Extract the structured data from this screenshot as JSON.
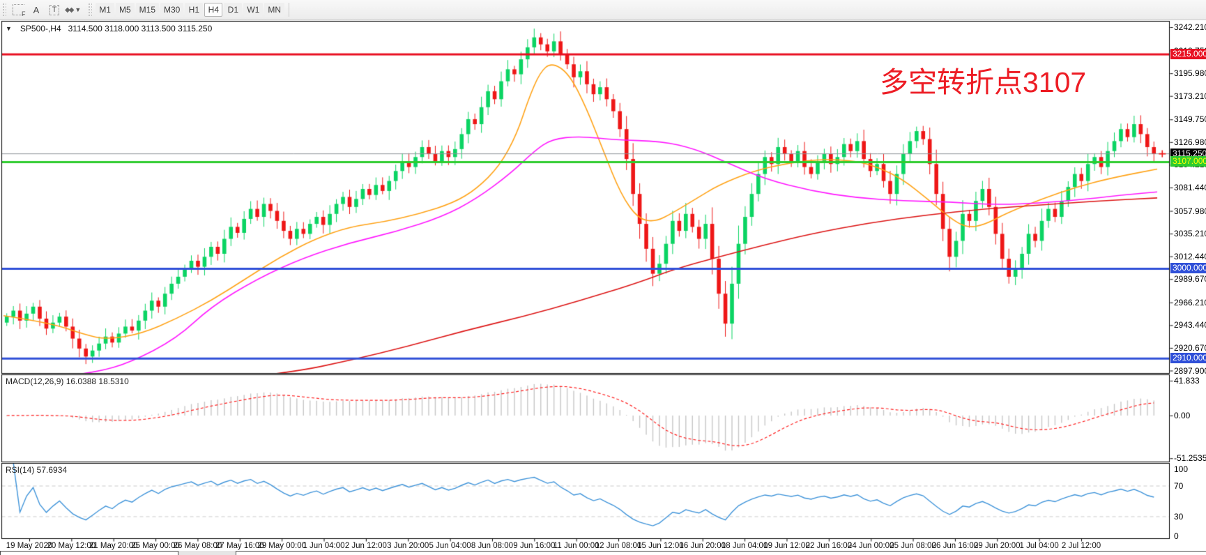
{
  "toolbar": {
    "tools": [
      {
        "name": "fibonacci-tool",
        "label": "F"
      },
      {
        "name": "label-tool",
        "label": "A"
      },
      {
        "name": "text-tool",
        "label": "T"
      },
      {
        "name": "shapes-tool",
        "label": "◆◆",
        "caret": "▼"
      }
    ],
    "timeframes": [
      "M1",
      "M5",
      "M15",
      "M30",
      "H1",
      "H4",
      "D1",
      "W1",
      "MN"
    ],
    "active_timeframe": "H4"
  },
  "chart": {
    "title": {
      "dropdown": "▼",
      "symbol_period": "SP500-,H4",
      "ohlc": "3114.500 3118.000 3113.500 3115.250"
    },
    "annotation": {
      "text": "多空转折点3107",
      "color": "#ed1c24"
    }
  },
  "chart_data": {
    "type": "candlestick+indicators",
    "symbol": "SP500-",
    "period": "H4",
    "quote": {
      "open": "3114.500",
      "high": "3118.000",
      "low": "3113.500",
      "close": "3115.250"
    },
    "price_axis": {
      "min": 2897.9,
      "max": 3242.21,
      "ticks": [
        "3242.210",
        "3218.750",
        "3195.980",
        "3173.210",
        "3149.750",
        "3126.980",
        "3104.210",
        "3081.440",
        "3057.980",
        "3035.210",
        "3012.440",
        "2989.670",
        "2966.210",
        "2943.440",
        "2920.670",
        "2897.900"
      ]
    },
    "levels": [
      {
        "name": "resistance-line",
        "value": 3215.0,
        "label": "3215.000",
        "line_color": "#e81022",
        "line_width": 3,
        "box_bg": "#e81022",
        "box_text": "#ffffff"
      },
      {
        "name": "bid-price-line",
        "value": 3115.25,
        "label": "3115.250",
        "line_color": "#8d9399",
        "line_width": 1,
        "box_bg": "#000000",
        "box_text": "#ffffff"
      },
      {
        "name": "pivot-line-3107",
        "value": 3107.0,
        "label": "3107.000",
        "line_color": "#2ecc2e",
        "line_width": 3,
        "box_bg": "#2ecc2e",
        "box_text": "#ffff00"
      },
      {
        "name": "support-line-3000",
        "value": 3000.0,
        "label": "3000.000",
        "line_color": "#3050d8",
        "line_width": 3,
        "box_bg": "#3050d8",
        "box_text": "#ffffff"
      },
      {
        "name": "support-line-2910",
        "value": 2910.0,
        "label": "2910.000",
        "line_color": "#3050d8",
        "line_width": 3,
        "box_bg": "#3050d8",
        "box_text": "#ffffff"
      }
    ],
    "current_price": 3115.25,
    "candles": {
      "up_color": "#0bd463",
      "down_color": "#ee1717",
      "closes": [
        2952,
        2958,
        2948,
        2955,
        2962,
        2950,
        2940,
        2946,
        2952,
        2942,
        2930,
        2920,
        2912,
        2918,
        2925,
        2932,
        2926,
        2935,
        2942,
        2938,
        2948,
        2958,
        2968,
        2962,
        2975,
        2985,
        2992,
        3000,
        3008,
        3002,
        3012,
        3022,
        3015,
        3030,
        3042,
        3036,
        3050,
        3060,
        3052,
        3065,
        3058,
        3048,
        3038,
        3030,
        3040,
        3035,
        3045,
        3052,
        3044,
        3055,
        3065,
        3072,
        3062,
        3070,
        3080,
        3074,
        3084,
        3078,
        3088,
        3098,
        3108,
        3102,
        3112,
        3122,
        3115,
        3108,
        3118,
        3112,
        3120,
        3135,
        3150,
        3145,
        3162,
        3178,
        3170,
        3188,
        3200,
        3195,
        3210,
        3222,
        3232,
        3225,
        3218,
        3228,
        3215,
        3205,
        3192,
        3198,
        3185,
        3175,
        3182,
        3170,
        3158,
        3140,
        3110,
        3075,
        3045,
        3020,
        2995,
        3005,
        3025,
        3048,
        3038,
        3055,
        3042,
        3030,
        3045,
        3010,
        2975,
        2945,
        2985,
        3025,
        3052,
        3075,
        3095,
        3112,
        3105,
        3122,
        3115,
        3108,
        3118,
        3102,
        3095,
        3108,
        3115,
        3105,
        3112,
        3125,
        3118,
        3128,
        3110,
        3098,
        3105,
        3088,
        3075,
        3095,
        3115,
        3128,
        3138,
        3130,
        3105,
        3075,
        3040,
        3012,
        3028,
        3055,
        3048,
        3068,
        3080,
        3062,
        3035,
        3010,
        2992,
        3000,
        3015,
        3035,
        3028,
        3048,
        3060,
        3052,
        3068,
        3082,
        3095,
        3088,
        3105,
        3112,
        3102,
        3118,
        3128,
        3140,
        3132,
        3145,
        3135,
        3122,
        3115
      ]
    },
    "moving_averages": [
      {
        "name": "ma-fast",
        "color": "#ffa216",
        "points": [
          [
            0,
            2953
          ],
          [
            0.04,
            2946
          ],
          [
            0.07,
            2934
          ],
          [
            0.09,
            2929
          ],
          [
            0.12,
            2935
          ],
          [
            0.15,
            2950
          ],
          [
            0.18,
            2968
          ],
          [
            0.21,
            2990
          ],
          [
            0.24,
            3012
          ],
          [
            0.27,
            3030
          ],
          [
            0.3,
            3042
          ],
          [
            0.33,
            3047
          ],
          [
            0.36,
            3055
          ],
          [
            0.39,
            3066
          ],
          [
            0.41,
            3080
          ],
          [
            0.43,
            3103
          ],
          [
            0.445,
            3135
          ],
          [
            0.455,
            3170
          ],
          [
            0.465,
            3197
          ],
          [
            0.475,
            3207
          ],
          [
            0.49,
            3196
          ],
          [
            0.505,
            3162
          ],
          [
            0.52,
            3118
          ],
          [
            0.535,
            3075
          ],
          [
            0.55,
            3050
          ],
          [
            0.565,
            3047
          ],
          [
            0.58,
            3056
          ],
          [
            0.6,
            3070
          ],
          [
            0.62,
            3084
          ],
          [
            0.65,
            3098
          ],
          [
            0.68,
            3106
          ],
          [
            0.71,
            3110
          ],
          [
            0.74,
            3108
          ],
          [
            0.76,
            3101
          ],
          [
            0.78,
            3089
          ],
          [
            0.8,
            3071
          ],
          [
            0.82,
            3051
          ],
          [
            0.835,
            3041
          ],
          [
            0.85,
            3044
          ],
          [
            0.87,
            3056
          ],
          [
            0.9,
            3070
          ],
          [
            0.93,
            3082
          ],
          [
            0.96,
            3091
          ],
          [
            1,
            3100
          ]
        ]
      },
      {
        "name": "ma-medium",
        "color": "#ff17ff",
        "points": [
          [
            0.05,
            2892
          ],
          [
            0.08,
            2896
          ],
          [
            0.11,
            2906
          ],
          [
            0.15,
            2930
          ],
          [
            0.18,
            2962
          ],
          [
            0.22,
            2990
          ],
          [
            0.26,
            3011
          ],
          [
            0.3,
            3026
          ],
          [
            0.34,
            3037
          ],
          [
            0.38,
            3052
          ],
          [
            0.41,
            3070
          ],
          [
            0.44,
            3096
          ],
          [
            0.46,
            3118
          ],
          [
            0.475,
            3130
          ],
          [
            0.5,
            3133
          ],
          [
            0.53,
            3129
          ],
          [
            0.57,
            3128
          ],
          [
            0.6,
            3120
          ],
          [
            0.63,
            3105
          ],
          [
            0.66,
            3090
          ],
          [
            0.7,
            3078
          ],
          [
            0.74,
            3071
          ],
          [
            0.78,
            3068
          ],
          [
            0.82,
            3067
          ],
          [
            0.86,
            3064
          ],
          [
            0.9,
            3066
          ],
          [
            0.94,
            3070
          ],
          [
            0.97,
            3074
          ],
          [
            1,
            3077
          ]
        ]
      },
      {
        "name": "ma-slow",
        "color": "#dc1616",
        "points": [
          [
            0.2,
            2890
          ],
          [
            0.25,
            2896
          ],
          [
            0.3,
            2908
          ],
          [
            0.35,
            2922
          ],
          [
            0.4,
            2938
          ],
          [
            0.45,
            2952
          ],
          [
            0.5,
            2968
          ],
          [
            0.55,
            2986
          ],
          [
            0.58,
            2999
          ],
          [
            0.62,
            3012
          ],
          [
            0.66,
            3024
          ],
          [
            0.7,
            3035
          ],
          [
            0.75,
            3046
          ],
          [
            0.8,
            3054
          ],
          [
            0.85,
            3060
          ],
          [
            0.9,
            3064
          ],
          [
            0.95,
            3068
          ],
          [
            1,
            3071
          ]
        ]
      }
    ],
    "macd": {
      "label": "MACD(12,26,9) 16.0388 18.5310",
      "params": [
        12,
        26,
        9
      ],
      "main_value": "16.0388",
      "signal_value": "18.5310",
      "axis_ticks": [
        {
          "label": "41.833",
          "value": 41.833
        },
        {
          "label": "0.00",
          "value": 0
        },
        {
          "label": "-51.2535",
          "value": -51.2535
        }
      ],
      "hist_color": "#c6c6c6",
      "signal_color": "#ff2020"
    },
    "rsi": {
      "label": "RSI(14) 57.6934",
      "period": 14,
      "value": "57.6934",
      "axis_ticks": [
        {
          "label": "100",
          "value": 100
        },
        {
          "label": "70",
          "value": 70
        },
        {
          "label": "30",
          "value": 30
        },
        {
          "label": "0",
          "value": 0
        }
      ],
      "level_lines": [
        70,
        30
      ],
      "line_color": "#3e93d9",
      "level_color": "#c8c8c8"
    },
    "time_axis": {
      "labels": [
        "19 May 2020",
        "20 May 12:00",
        "21 May 20:00",
        "25 May 00:00",
        "26 May 08:00",
        "27 May 16:00",
        "29 May 00:00",
        "1 Jun 04:00",
        "2 Jun 12:00",
        "3 Jun 20:00",
        "5 Jun 04:00",
        "8 Jun 08:00",
        "9 Jun 16:00",
        "11 Jun 00:00",
        "12 Jun 08:00",
        "15 Jun 12:00",
        "16 Jun 20:00",
        "18 Jun 04:00",
        "19 Jun 12:00",
        "22 Jun 16:00",
        "24 Jun 00:00",
        "25 Jun 08:00",
        "26 Jun 16:00",
        "29 Jun 20:00",
        "1 Jul 04:00",
        "2 Jul 12:00"
      ]
    }
  }
}
